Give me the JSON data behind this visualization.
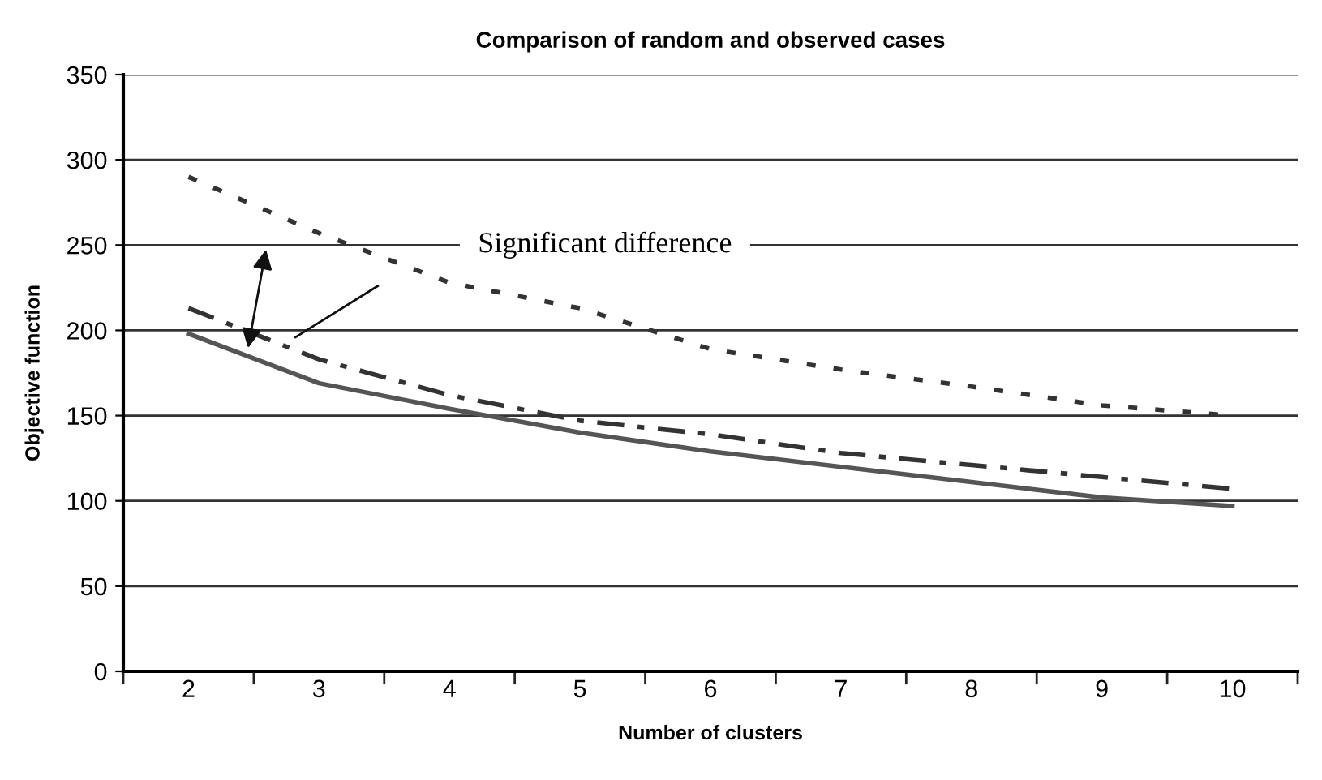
{
  "chart_data": {
    "type": "line",
    "title": "Comparison of random and observed cases",
    "xlabel": "Number of clusters",
    "ylabel": "Objective function",
    "categories": [
      "2",
      "3",
      "4",
      "5",
      "6",
      "7",
      "8",
      "9",
      "10"
    ],
    "series": [
      {
        "color": "#333333",
        "line_style": "dotted",
        "values": [
          290,
          257,
          228,
          213,
          189,
          177,
          167,
          156,
          150
        ]
      },
      {
        "color": "#333333",
        "line_style": "dashed",
        "values": [
          213,
          183,
          162,
          147,
          139,
          128,
          121,
          114,
          107
        ]
      },
      {
        "color": "#555555",
        "line_style": "solid",
        "values": [
          198,
          169,
          154,
          140,
          129,
          120,
          111,
          102,
          97
        ]
      }
    ],
    "ylim": [
      0,
      350
    ],
    "yticks": [
      0,
      50,
      100,
      150,
      200,
      250,
      300,
      350
    ],
    "grid": "y",
    "marker": "none",
    "annotations": [
      "Significant difference"
    ]
  }
}
